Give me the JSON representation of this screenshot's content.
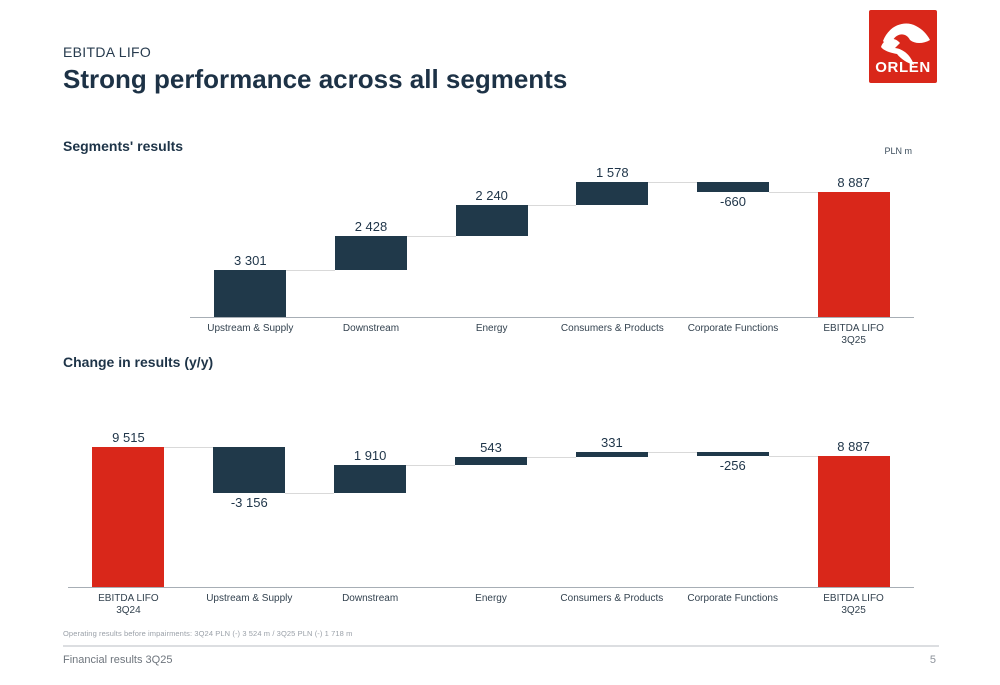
{
  "slide": {
    "eyebrow": "EBITDA LIFO",
    "title": "Strong performance across all segments",
    "section1_heading": "Segments' results",
    "section2_heading": "Change in results (y/y)",
    "unit_label": "PLN m",
    "footnote": "Operating results before impairments: 3Q24 PLN (-) 3 524 m / 3Q25 PLN (-) 1 718 m",
    "footer_left": "Financial results 3Q25",
    "page_number": "5",
    "logo_text": "ORLEN"
  },
  "colors": {
    "brand_red": "#d9271a",
    "bar_navy": "#20394a",
    "text_navy": "#1e3448",
    "connector_gray": "#d9d9d9",
    "axis_gray": "#a7aeb5"
  },
  "chart_data": [
    {
      "id": "segments",
      "type": "bar",
      "subtype": "waterfall",
      "title": "Segments' results",
      "unit": "PLN m",
      "legend": "none",
      "grid": false,
      "bars": [
        {
          "category_lines": [
            "Upstream & Supply"
          ],
          "value": 3301,
          "display": "3 301",
          "kind": "delta"
        },
        {
          "category_lines": [
            "Downstream"
          ],
          "value": 2428,
          "display": "2 428",
          "kind": "delta"
        },
        {
          "category_lines": [
            "Energy"
          ],
          "value": 2240,
          "display": "2 240",
          "kind": "delta"
        },
        {
          "category_lines": [
            "Consumers & Products"
          ],
          "value": 1578,
          "display": "1 578",
          "kind": "delta"
        },
        {
          "category_lines": [
            "Corporate Functions"
          ],
          "value": -660,
          "display": "-660",
          "kind": "delta"
        },
        {
          "category_lines": [
            "EBITDA LIFO",
            "3Q25"
          ],
          "value": 8887,
          "display": "8 887",
          "kind": "total"
        }
      ]
    },
    {
      "id": "change_yoy",
      "type": "bar",
      "subtype": "waterfall",
      "title": "Change in results (y/y)",
      "unit": "PLN m",
      "legend": "none",
      "grid": false,
      "bars": [
        {
          "category_lines": [
            "EBITDA LIFO",
            "3Q24"
          ],
          "value": 9515,
          "display": "9 515",
          "kind": "total"
        },
        {
          "category_lines": [
            "Upstream & Supply"
          ],
          "value": -3156,
          "display": "-3 156",
          "kind": "delta"
        },
        {
          "category_lines": [
            "Downstream"
          ],
          "value": 1910,
          "display": "1 910",
          "kind": "delta"
        },
        {
          "category_lines": [
            "Energy"
          ],
          "value": 543,
          "display": "543",
          "kind": "delta"
        },
        {
          "category_lines": [
            "Consumers & Products"
          ],
          "value": 331,
          "display": "331",
          "kind": "delta"
        },
        {
          "category_lines": [
            "Corporate Functions"
          ],
          "value": -256,
          "display": "-256",
          "kind": "delta"
        },
        {
          "category_lines": [
            "EBITDA LIFO",
            "3Q25"
          ],
          "value": 8887,
          "display": "8 887",
          "kind": "total"
        }
      ]
    }
  ]
}
